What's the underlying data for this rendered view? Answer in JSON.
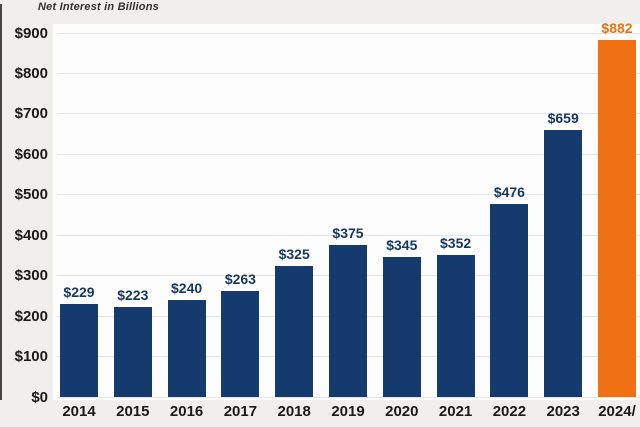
{
  "chart_data": {
    "type": "bar",
    "title": "Net Interest in Billions",
    "categories": [
      "2014",
      "2015",
      "2016",
      "2017",
      "2018",
      "2019",
      "2020",
      "2021",
      "2022",
      "2023",
      "2024/"
    ],
    "values": [
      229,
      223,
      240,
      263,
      325,
      375,
      345,
      352,
      476,
      659,
      882
    ],
    "data_labels": [
      "$229",
      "$223",
      "$240",
      "$263",
      "$325",
      "$375",
      "$345",
      "$352",
      "$476",
      "$659",
      "$882"
    ],
    "bar_colors": [
      "#143A6E",
      "#143A6E",
      "#143A6E",
      "#143A6E",
      "#143A6E",
      "#143A6E",
      "#143A6E",
      "#143A6E",
      "#143A6E",
      "#143A6E",
      "#F07014"
    ],
    "label_colors": [
      "#17375E",
      "#17375E",
      "#17375E",
      "#17375E",
      "#17375E",
      "#17375E",
      "#17375E",
      "#17375E",
      "#17375E",
      "#17375E",
      "#EB7014"
    ],
    "y_ticks": [
      "$0",
      "$100",
      "$200",
      "$300",
      "$400",
      "$500",
      "$600",
      "$700",
      "$800",
      "$900"
    ],
    "y_tick_values": [
      0,
      100,
      200,
      300,
      400,
      500,
      600,
      700,
      800,
      900
    ],
    "xlabel": "",
    "ylabel": "",
    "ylim": [
      0,
      900
    ],
    "grid": true,
    "legend": false,
    "colors": {
      "bar_navy": "#143A6E",
      "bar_orange": "#F07014",
      "gridline": "#e4e4e4",
      "axis_text": "#1a1a1a",
      "title_text": "#333333",
      "plot_background": "#fdfdfd",
      "outer_background": "#f0efed"
    }
  }
}
